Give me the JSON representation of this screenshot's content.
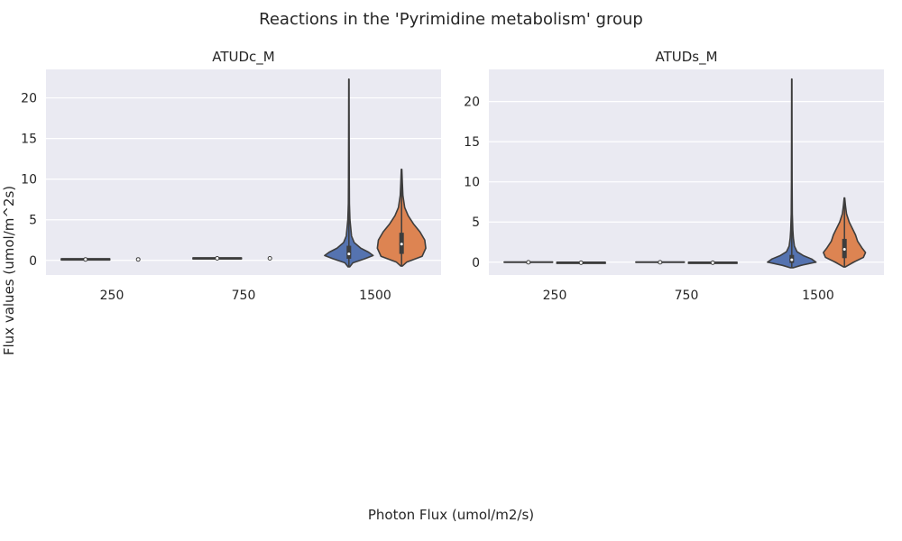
{
  "figure": {
    "title": "Reactions in the 'Pyrimidine metabolism' group",
    "xlabel": "Photon Flux (umol/m2/s)",
    "ylabel": "Flux values (umol/m^2s)"
  },
  "style": {
    "background": "#eaeaf2",
    "grid_color": "#ffffff",
    "series_colors": [
      "#5573b0",
      "#dd8452"
    ],
    "outline_color": "#3d3d3d"
  },
  "chart_data": [
    {
      "type": "violin",
      "title": "ATUDc_M",
      "categories": [
        "250",
        "750",
        "1500"
      ],
      "ylim": [
        -1.8,
        23.5
      ],
      "yticks": [
        0,
        5,
        10,
        15,
        20
      ],
      "grid": true,
      "groups": [
        {
          "category": "250",
          "violins": [
            {
              "series": 0,
              "min": 0.05,
              "q1": 0.1,
              "median": 0.12,
              "q3": 0.14,
              "max": 0.2,
              "width": 0.92
            },
            {
              "series": 1,
              "min": 0.12,
              "q1": 0.12,
              "median": 0.12,
              "q3": 0.12,
              "max": 0.12,
              "width": 0
            }
          ]
        },
        {
          "category": "750",
          "violins": [
            {
              "series": 0,
              "min": 0.18,
              "q1": 0.22,
              "median": 0.25,
              "q3": 0.28,
              "max": 0.32,
              "width": 0.92
            },
            {
              "series": 1,
              "min": 0.25,
              "q1": 0.25,
              "median": 0.25,
              "q3": 0.25,
              "max": 0.25,
              "width": 0
            }
          ]
        },
        {
          "category": "1500",
          "violins": [
            {
              "series": 0,
              "min": -0.8,
              "q1": 0.2,
              "median": 0.8,
              "q3": 1.8,
              "max": 22.3,
              "profile": [
                [
                  -0.8,
                  0.03
                ],
                [
                  -0.3,
                  0.15
                ],
                [
                  0.2,
                  0.6
                ],
                [
                  0.6,
                  0.92
                ],
                [
                  1.0,
                  0.75
                ],
                [
                  1.5,
                  0.45
                ],
                [
                  2.2,
                  0.2
                ],
                [
                  3.0,
                  0.1
                ],
                [
                  4.0,
                  0.07
                ],
                [
                  5.0,
                  0.04
                ],
                [
                  7.0,
                  0.02
                ],
                [
                  10.0,
                  0.015
                ],
                [
                  15.0,
                  0.01
                ],
                [
                  22.3,
                  0.005
                ]
              ]
            },
            {
              "series": 1,
              "min": -0.7,
              "q1": 0.8,
              "median": 2.0,
              "q3": 3.4,
              "max": 11.2,
              "profile": [
                [
                  -0.7,
                  0.03
                ],
                [
                  -0.2,
                  0.2
                ],
                [
                  0.5,
                  0.78
                ],
                [
                  1.5,
                  0.92
                ],
                [
                  2.5,
                  0.88
                ],
                [
                  3.5,
                  0.7
                ],
                [
                  4.5,
                  0.45
                ],
                [
                  5.5,
                  0.25
                ],
                [
                  6.5,
                  0.12
                ],
                [
                  8.0,
                  0.05
                ],
                [
                  9.5,
                  0.03
                ],
                [
                  11.2,
                  0.01
                ]
              ]
            }
          ]
        }
      ]
    },
    {
      "type": "violin",
      "title": "ATUDs_M",
      "categories": [
        "250",
        "750",
        "1500"
      ],
      "ylim": [
        -1.6,
        24.0
      ],
      "yticks": [
        0,
        5,
        10,
        15,
        20
      ],
      "grid": true,
      "groups": [
        {
          "category": "250",
          "violins": [
            {
              "series": 0,
              "min": -0.02,
              "q1": -0.01,
              "median": -0.01,
              "q3": 0.0,
              "max": 0.02,
              "width": 0.92
            },
            {
              "series": 1,
              "min": -0.15,
              "q1": -0.1,
              "median": -0.07,
              "q3": -0.05,
              "max": 0.0,
              "width": 0.92
            }
          ]
        },
        {
          "category": "750",
          "violins": [
            {
              "series": 0,
              "min": -0.02,
              "q1": -0.01,
              "median": -0.01,
              "q3": 0.0,
              "max": 0.02,
              "width": 0.92
            },
            {
              "series": 1,
              "min": -0.15,
              "q1": -0.1,
              "median": -0.07,
              "q3": -0.05,
              "max": 0.0,
              "width": 0.92
            }
          ]
        },
        {
          "category": "1500",
          "violins": [
            {
              "series": 0,
              "min": -0.7,
              "q1": -0.1,
              "median": 0.3,
              "q3": 0.9,
              "max": 22.8,
              "profile": [
                [
                  -0.7,
                  0.05
                ],
                [
                  -0.4,
                  0.35
                ],
                [
                  0.0,
                  0.92
                ],
                [
                  0.4,
                  0.75
                ],
                [
                  0.8,
                  0.45
                ],
                [
                  1.3,
                  0.2
                ],
                [
                  2.0,
                  0.1
                ],
                [
                  3.0,
                  0.06
                ],
                [
                  4.0,
                  0.04
                ],
                [
                  6.0,
                  0.02
                ],
                [
                  10.0,
                  0.012
                ],
                [
                  16.0,
                  0.008
                ],
                [
                  22.8,
                  0.005
                ]
              ]
            },
            {
              "series": 1,
              "min": -0.6,
              "q1": 0.5,
              "median": 1.6,
              "q3": 2.9,
              "max": 8.0,
              "profile": [
                [
                  -0.6,
                  0.03
                ],
                [
                  0.0,
                  0.35
                ],
                [
                  0.6,
                  0.72
                ],
                [
                  1.2,
                  0.8
                ],
                [
                  1.8,
                  0.66
                ],
                [
                  2.6,
                  0.5
                ],
                [
                  3.4,
                  0.42
                ],
                [
                  4.2,
                  0.3
                ],
                [
                  5.0,
                  0.18
                ],
                [
                  6.0,
                  0.08
                ],
                [
                  7.0,
                  0.04
                ],
                [
                  8.0,
                  0.01
                ]
              ]
            }
          ]
        }
      ]
    }
  ]
}
